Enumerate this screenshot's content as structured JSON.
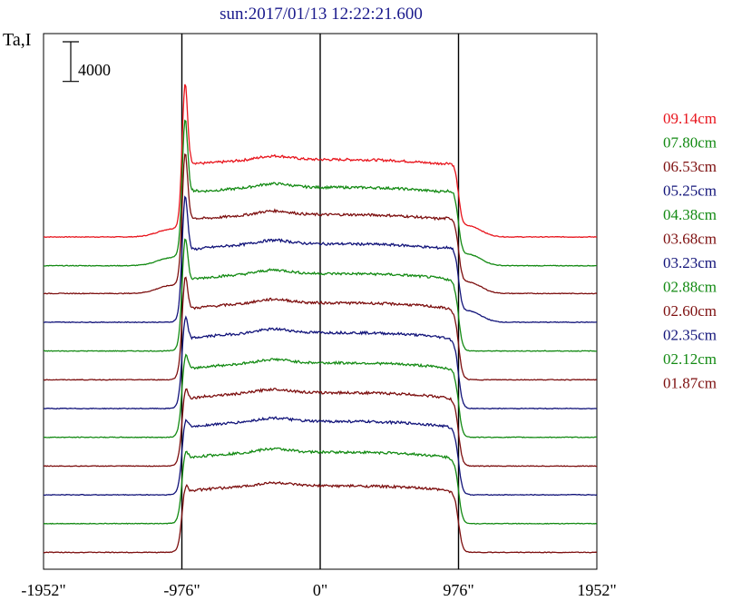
{
  "chart_data": {
    "type": "line",
    "title": "sun:2017/01/13 12:22:21.600",
    "ylabel": "Ta,I",
    "xlabel": "",
    "x_ticks": [
      {
        "value": -1952,
        "label": "-1952\""
      },
      {
        "value": -976,
        "label": "-976\""
      },
      {
        "value": 0,
        "label": "0\""
      },
      {
        "value": 976,
        "label": "976\""
      },
      {
        "value": 1952,
        "label": "1952\""
      }
    ],
    "xlim": [
      -1952,
      1952
    ],
    "ylim": [
      0,
      54000
    ],
    "vertical_lines": [
      -976,
      0,
      976
    ],
    "scale_bar": {
      "value": 4000,
      "label": "4000"
    },
    "legend_position": "right",
    "grid": false,
    "series": [
      {
        "name": "09.14cm",
        "color": "#e8141c",
        "offset": 33500,
        "disk": 7800,
        "peak": 15200
      },
      {
        "name": "07.80cm",
        "color": "#138a13",
        "offset": 30600,
        "disk": 7900,
        "peak": 14500
      },
      {
        "name": "06.53cm",
        "color": "#7d0f0f",
        "offset": 27800,
        "disk": 7950,
        "peak": 13900
      },
      {
        "name": "05.25cm",
        "color": "#12147a",
        "offset": 24900,
        "disk": 7900,
        "peak": 13000
      },
      {
        "name": "04.38cm",
        "color": "#138a13",
        "offset": 22000,
        "disk": 7800,
        "peak": 11600
      },
      {
        "name": "03.68cm",
        "color": "#7d0f0f",
        "offset": 19100,
        "disk": 7750,
        "peak": 10600
      },
      {
        "name": "03.23cm",
        "color": "#12147a",
        "offset": 16200,
        "disk": 7650,
        "peak": 9300
      },
      {
        "name": "02.88cm",
        "color": "#138a13",
        "offset": 13300,
        "disk": 7500,
        "peak": 8400
      },
      {
        "name": "02.60cm",
        "color": "#7d0f0f",
        "offset": 10400,
        "disk": 7400,
        "peak": 7800
      },
      {
        "name": "02.35cm",
        "color": "#12147a",
        "offset": 7500,
        "disk": 7400,
        "peak": 7600
      },
      {
        "name": "02.12cm",
        "color": "#138a13",
        "offset": 4600,
        "disk": 7200,
        "peak": 7300
      },
      {
        "name": "01.87cm",
        "color": "#7d0f0f",
        "offset": 1700,
        "disk": 6700,
        "peak": 6700
      }
    ]
  }
}
